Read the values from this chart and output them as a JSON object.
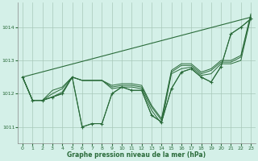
{
  "title": "Graphe pression niveau de la mer (hPa)",
  "bg_color": "#d4f0e8",
  "grid_color": "#a8c8ba",
  "line_color": "#2a6b3a",
  "xlim": [
    -0.5,
    23.5
  ],
  "ylim": [
    1010.5,
    1014.75
  ],
  "yticks": [
    1011,
    1012,
    1013,
    1014
  ],
  "xticks": [
    0,
    1,
    2,
    3,
    4,
    5,
    6,
    7,
    8,
    9,
    10,
    11,
    12,
    13,
    14,
    15,
    16,
    17,
    18,
    19,
    20,
    21,
    22,
    23
  ],
  "series": [
    [
      1012.5,
      1011.8,
      1011.8,
      1011.9,
      1012.0,
      1012.5,
      1011.0,
      1011.1,
      1011.1,
      1012.0,
      1012.2,
      1012.1,
      1012.1,
      1011.35,
      1011.15,
      1012.15,
      1012.65,
      1012.75,
      1012.5,
      1012.35,
      1012.82,
      1013.8,
      1014.0,
      1014.25
    ],
    [
      1012.5,
      1011.8,
      1011.8,
      1011.9,
      1012.05,
      1012.5,
      1012.4,
      1012.4,
      1012.4,
      1012.15,
      1012.2,
      1012.2,
      1012.15,
      1011.5,
      1011.1,
      1012.6,
      1012.75,
      1012.8,
      1012.55,
      1012.6,
      1012.9,
      1012.9,
      1013.0,
      1014.3
    ],
    [
      1012.5,
      1011.8,
      1011.8,
      1012.0,
      1012.15,
      1012.5,
      1012.4,
      1012.4,
      1012.4,
      1012.2,
      1012.25,
      1012.25,
      1012.2,
      1011.6,
      1011.2,
      1012.65,
      1012.85,
      1012.85,
      1012.6,
      1012.7,
      1012.95,
      1012.95,
      1013.1,
      1014.35
    ],
    [
      1012.5,
      1011.8,
      1011.8,
      1012.1,
      1012.2,
      1012.5,
      1012.4,
      1012.4,
      1012.4,
      1012.25,
      1012.3,
      1012.3,
      1012.25,
      1011.65,
      1011.25,
      1012.7,
      1012.9,
      1012.9,
      1012.65,
      1012.75,
      1013.0,
      1013.0,
      1013.15,
      1014.4
    ]
  ],
  "straight_line": [
    [
      0,
      1012.5
    ],
    [
      23,
      1014.3
    ]
  ]
}
